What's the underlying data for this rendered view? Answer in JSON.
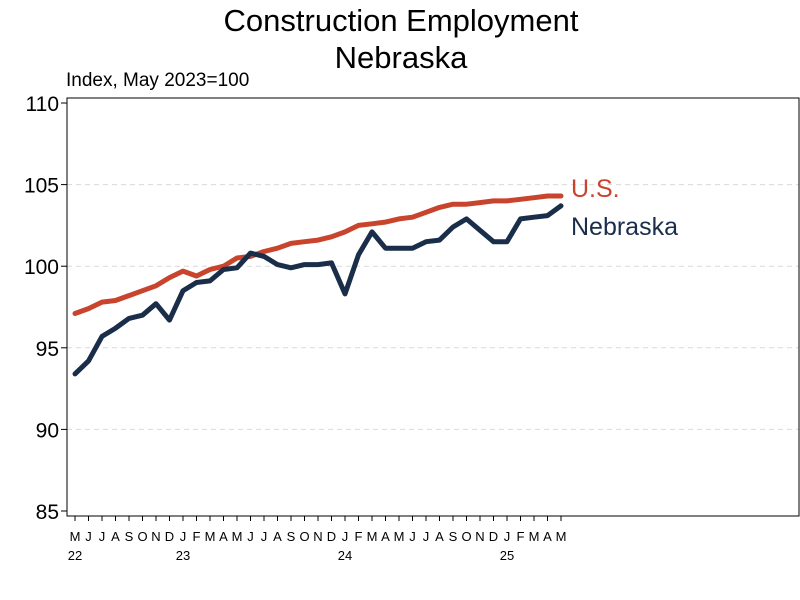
{
  "chart_data": {
    "type": "line",
    "title": "Construction Employment",
    "subtitle": "Nebraska",
    "ylabel": "Index, May 2023=100",
    "xlabel": "",
    "ylim": [
      85,
      110
    ],
    "yticks": [
      85,
      90,
      95,
      100,
      105,
      110
    ],
    "grid": "horizontal dashed",
    "legend": "inline labels at line ends (right)",
    "x": [
      "2022-05",
      "2022-06",
      "2022-07",
      "2022-08",
      "2022-09",
      "2022-10",
      "2022-11",
      "2022-12",
      "2023-01",
      "2023-02",
      "2023-03",
      "2023-04",
      "2023-05",
      "2023-06",
      "2023-07",
      "2023-08",
      "2023-09",
      "2023-10",
      "2023-11",
      "2023-12",
      "2024-01",
      "2024-02",
      "2024-03",
      "2024-04",
      "2024-05",
      "2024-06",
      "2024-07",
      "2024-08",
      "2024-09",
      "2024-10",
      "2024-11",
      "2024-12",
      "2025-01",
      "2025-02",
      "2025-03",
      "2025-04",
      "2025-05"
    ],
    "xtick_labels": [
      "M",
      "J",
      "J",
      "A",
      "S",
      "O",
      "N",
      "D",
      "J",
      "F",
      "M",
      "A",
      "M",
      "J",
      "J",
      "A",
      "S",
      "O",
      "N",
      "D",
      "J",
      "F",
      "M",
      "A",
      "M",
      "J",
      "J",
      "A",
      "S",
      "O",
      "N",
      "D",
      "J",
      "F",
      "M",
      "A",
      "M"
    ],
    "year_labels": [
      {
        "x": "2022-05",
        "label": "22"
      },
      {
        "x": "2023-01",
        "label": "23"
      },
      {
        "x": "2024-01",
        "label": "24"
      },
      {
        "x": "2025-01",
        "label": "25"
      }
    ],
    "series": [
      {
        "name": "U.S.",
        "color": "#c9442c",
        "values": [
          97.1,
          97.4,
          97.8,
          97.9,
          98.2,
          98.5,
          98.8,
          99.3,
          99.7,
          99.4,
          99.8,
          100.0,
          100.5,
          100.6,
          100.9,
          101.1,
          101.4,
          101.5,
          101.6,
          101.8,
          102.1,
          102.5,
          102.6,
          102.7,
          102.9,
          103.0,
          103.3,
          103.6,
          103.8,
          103.8,
          103.9,
          104.0,
          104.0,
          104.1,
          104.2,
          104.3,
          104.3
        ]
      },
      {
        "name": "Nebraska",
        "color": "#1a2e4a",
        "values": [
          93.4,
          94.2,
          95.7,
          96.2,
          96.8,
          97.0,
          97.7,
          96.7,
          98.5,
          99.0,
          99.1,
          99.8,
          99.9,
          100.8,
          100.6,
          100.1,
          99.9,
          100.1,
          100.1,
          100.2,
          98.3,
          100.7,
          102.1,
          101.1,
          101.1,
          101.1,
          101.5,
          101.6,
          102.4,
          102.9,
          102.2,
          101.5,
          101.5,
          102.9,
          103.0,
          103.1,
          103.7
        ]
      }
    ]
  }
}
